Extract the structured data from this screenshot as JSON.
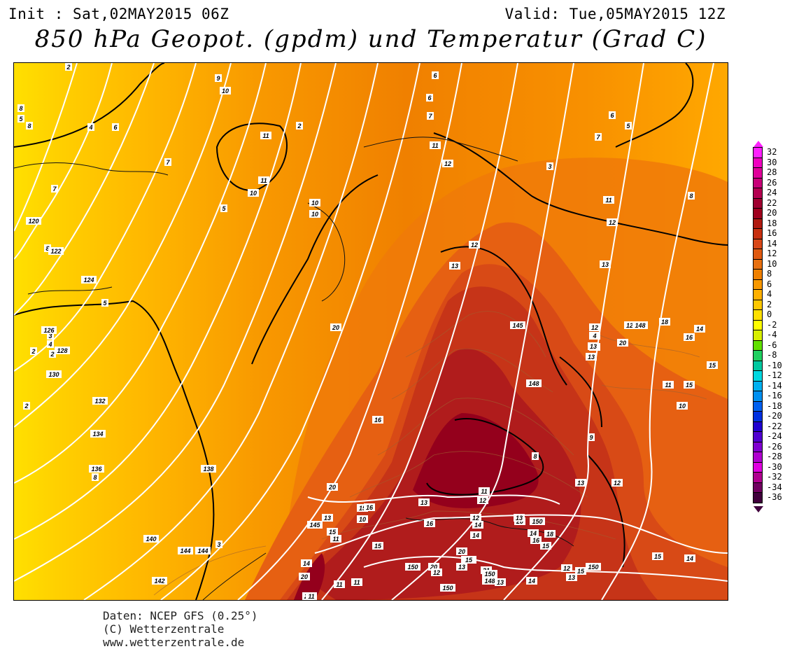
{
  "header": {
    "init": "Init : Sat,02MAY2015 06Z",
    "valid": "Valid: Tue,05MAY2015 12Z",
    "title": "850 hPa Geopot. (gpdm) und Temperatur (Grad C)"
  },
  "colorbar": {
    "labels": [
      "32",
      "30",
      "28",
      "26",
      "24",
      "22",
      "20",
      "18",
      "16",
      "14",
      "12",
      "10",
      "8",
      "6",
      "4",
      "2",
      "0",
      "-2",
      "-4",
      "-6",
      "-8",
      "-10",
      "-12",
      "-14",
      "-16",
      "-18",
      "-20",
      "-22",
      "-24",
      "-26",
      "-28",
      "-30",
      "-32",
      "-34",
      "-36"
    ],
    "colors": [
      "#ff20ff",
      "#f000c0",
      "#e0009a",
      "#c80078",
      "#b40050",
      "#a00030",
      "#a0001e",
      "#b01a10",
      "#c83010",
      "#d84818",
      "#e05a10",
      "#e87010",
      "#f08000",
      "#f89800",
      "#ffb000",
      "#ffc800",
      "#ffe000",
      "#ffff00",
      "#d8f000",
      "#60e000",
      "#20d060",
      "#00c8a0",
      "#00d8e0",
      "#00b0f0",
      "#0090f0",
      "#0060f0",
      "#0030e0",
      "#2000d0",
      "#5000d0",
      "#8000d0",
      "#b000d0",
      "#e000e0",
      "#b00090",
      "#700060",
      "#40003c"
    ]
  },
  "map_labels": {
    "isotherms": [
      "2",
      "3",
      "4",
      "5",
      "6",
      "7",
      "8",
      "9",
      "10",
      "11",
      "12",
      "13",
      "14",
      "15",
      "16",
      "18",
      "20"
    ],
    "geopotential": [
      "120",
      "122",
      "124",
      "126",
      "128",
      "130",
      "132",
      "134",
      "136",
      "138",
      "140",
      "142",
      "144",
      "145",
      "146",
      "148",
      "150"
    ],
    "placed": [
      "2",
      "8",
      "5",
      "4",
      "6",
      "7",
      "7",
      "9",
      "10",
      "11",
      "10",
      "5",
      "2",
      "8",
      "11",
      "10",
      "10",
      "3",
      "4",
      "12",
      "11",
      "6",
      "6",
      "7",
      "6",
      "7",
      "5",
      "3",
      "8",
      "11",
      "12",
      "13",
      "14",
      "15",
      "16",
      "18",
      "15",
      "11",
      "10",
      "9",
      "8",
      "12",
      "12",
      "13",
      "13",
      "14",
      "11",
      "145",
      "12",
      "13",
      "12",
      "14",
      "12",
      "12",
      "14",
      "16",
      "20",
      "148",
      "148",
      "20",
      "15",
      "16",
      "16",
      "20",
      "146",
      "20",
      "14",
      "18",
      "13",
      "20",
      "15",
      "21",
      "148",
      "14",
      "13",
      "150",
      "15",
      "150",
      "12",
      "150",
      "150",
      "13",
      "12",
      "13",
      "15",
      "150",
      "15",
      "14",
      "16",
      "15",
      "11",
      "11",
      "11",
      "13",
      "15",
      "145",
      "14",
      "20",
      "21",
      "20",
      "16",
      "10",
      "11",
      "144",
      "3",
      "146",
      "8",
      "144",
      "142",
      "140",
      "138",
      "136",
      "134",
      "132",
      "130",
      "128",
      "126",
      "124",
      "122",
      "120",
      "8",
      "2",
      "2",
      "2",
      "5",
      "4",
      "13",
      "13",
      "15"
    ]
  },
  "footer": {
    "line1": "Daten: NCEP GFS (0.25°)",
    "line2": "(C) Wetterzentrale",
    "line3": "www.wetterzentrale.de"
  }
}
